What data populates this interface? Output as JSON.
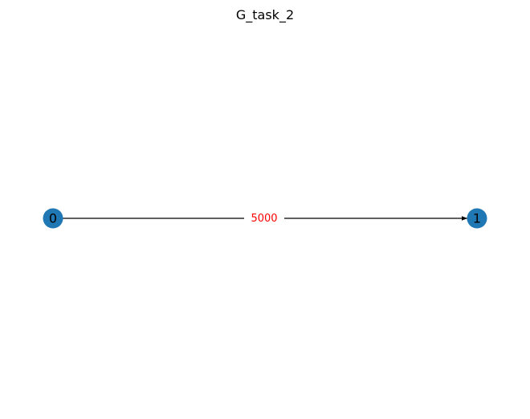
{
  "title": "G_task_2",
  "node_color": "#1f77b4",
  "edge_color": "#000000",
  "edge_label_color": "#ff0000",
  "nodes": [
    {
      "id": "0",
      "label": "0"
    },
    {
      "id": "1",
      "label": "1"
    }
  ],
  "edges": [
    {
      "source": "0",
      "target": "1",
      "label": "5000",
      "directed": true
    }
  ]
}
